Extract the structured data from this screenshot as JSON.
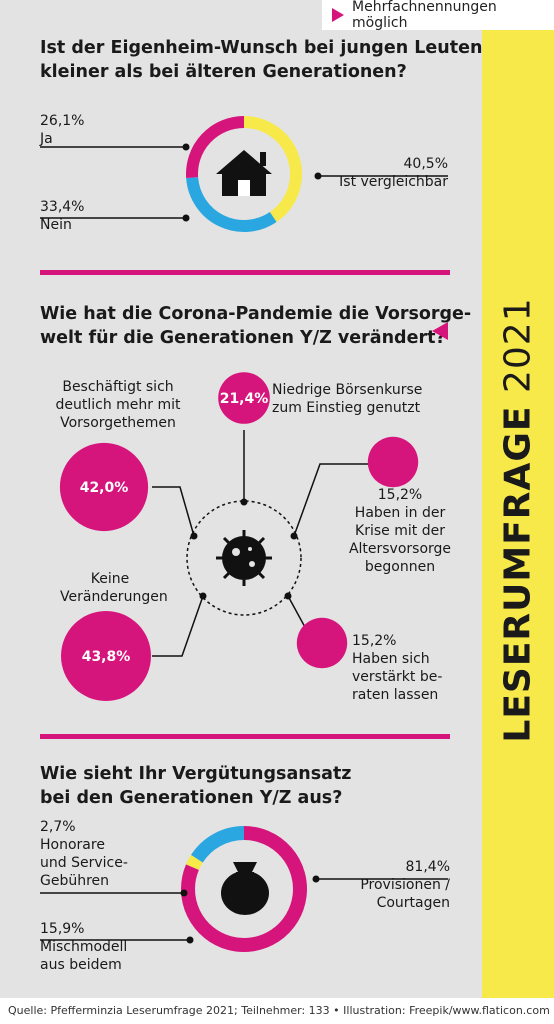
{
  "tag": "Mehrfachnennungen möglich",
  "side": {
    "bold": "LESERUMFRAGE",
    "year": "2021"
  },
  "q1": {
    "title_line1": "Ist der Eigenheim-Wunsch bei jungen Leuten",
    "title_line2": "kleiner als bei älteren Generationen?"
  },
  "q2": {
    "title_line1": "Wie hat die Corona-Pandemie die Vorsorge-",
    "title_line2": "welt für die Generationen Y/Z verändert?"
  },
  "q3": {
    "title_line1": "Wie sieht Ihr Vergütungsansatz",
    "title_line2": "bei den Generationen Y/Z aus?"
  },
  "colors": {
    "magenta": "#d6157c",
    "yellow": "#f7e94a",
    "blue": "#2aa6e0",
    "panel": "#e3e3e3"
  },
  "icons": [
    "house-icon",
    "virus-icon",
    "money-bag-icon"
  ],
  "chart_data": [
    {
      "type": "pie",
      "title": "Ist der Eigenheim-Wunsch bei jungen Leuten kleiner als bei älteren Generationen?",
      "slices": [
        {
          "label": "Ja",
          "value": 26.1,
          "display": "26,1%",
          "color": "#d6157c"
        },
        {
          "label": "Ist vergleichbar",
          "value": 40.5,
          "display": "40,5%",
          "color": "#f7e94a"
        },
        {
          "label": "Nein",
          "value": 33.4,
          "display": "33,4%",
          "color": "#2aa6e0"
        }
      ]
    },
    {
      "type": "bar",
      "title": "Wie hat die Corona-Pandemie die Vorsorgewelt für die Generationen Y/Z verändert?",
      "items": [
        {
          "label": "Beschäftigt sich deutlich mehr mit Vorsorgethemen",
          "value": 42.0,
          "display": "42,0%"
        },
        {
          "label": "Niedrige Börsenkurse zum Einstieg genutzt",
          "value": 21.4,
          "display": "21,4%"
        },
        {
          "label": "Haben in der Krise mit der Altersvorsorge begonnen",
          "value": 15.2,
          "display": "15,2%"
        },
        {
          "label": "Keine Veränderungen",
          "value": 43.8,
          "display": "43,8%"
        },
        {
          "label": "Haben sich verstärkt beraten lassen",
          "value": 15.2,
          "display": "15,2%"
        }
      ]
    },
    {
      "type": "pie",
      "title": "Wie sieht Ihr Vergütungsansatz bei den Generationen Y/Z aus?",
      "slices": [
        {
          "label": "Provisionen / Courtagen",
          "value": 81.4,
          "display": "81,4%",
          "color": "#d6157c"
        },
        {
          "label": "Honorare und Service-Gebühren",
          "value": 2.7,
          "display": "2,7%",
          "color": "#f7e94a"
        },
        {
          "label": "Mischmodell aus beidem",
          "value": 15.9,
          "display": "15,9%",
          "color": "#2aa6e0"
        }
      ]
    }
  ],
  "labels": {
    "ja": "Ja",
    "vergleichbar": "Ist vergleichbar",
    "nein": "Nein",
    "b1_l1": "Beschäftigt sich",
    "b1_l2": "deutlich mehr mit",
    "b1_l3": "Vorsorgethemen",
    "b2_l1": "Niedrige Börsenkurse",
    "b2_l2": "zum Einstieg genutzt",
    "b3_l1": "Haben in der",
    "b3_l2": "Krise mit der",
    "b3_l3": "Altersvorsorge",
    "b3_l4": "begonnen",
    "b4_l1": "Keine",
    "b4_l2": "Veränderungen",
    "b5_l1": "Haben sich",
    "b5_l2": "verstärkt be-",
    "b5_l3": "raten lassen",
    "h_l1": "Honorare",
    "h_l2": "und Service-",
    "h_l3": "Gebühren",
    "m_l1": "Mischmodell",
    "m_l2": "aus beidem",
    "p_l1": "Provisionen /",
    "p_l2": "Courtagen"
  },
  "footer": "Quelle: Pfefferminzia Leserumfrage 2021; Teilnehmer: 133 • Illustration: Freepik/www.flaticon.com"
}
